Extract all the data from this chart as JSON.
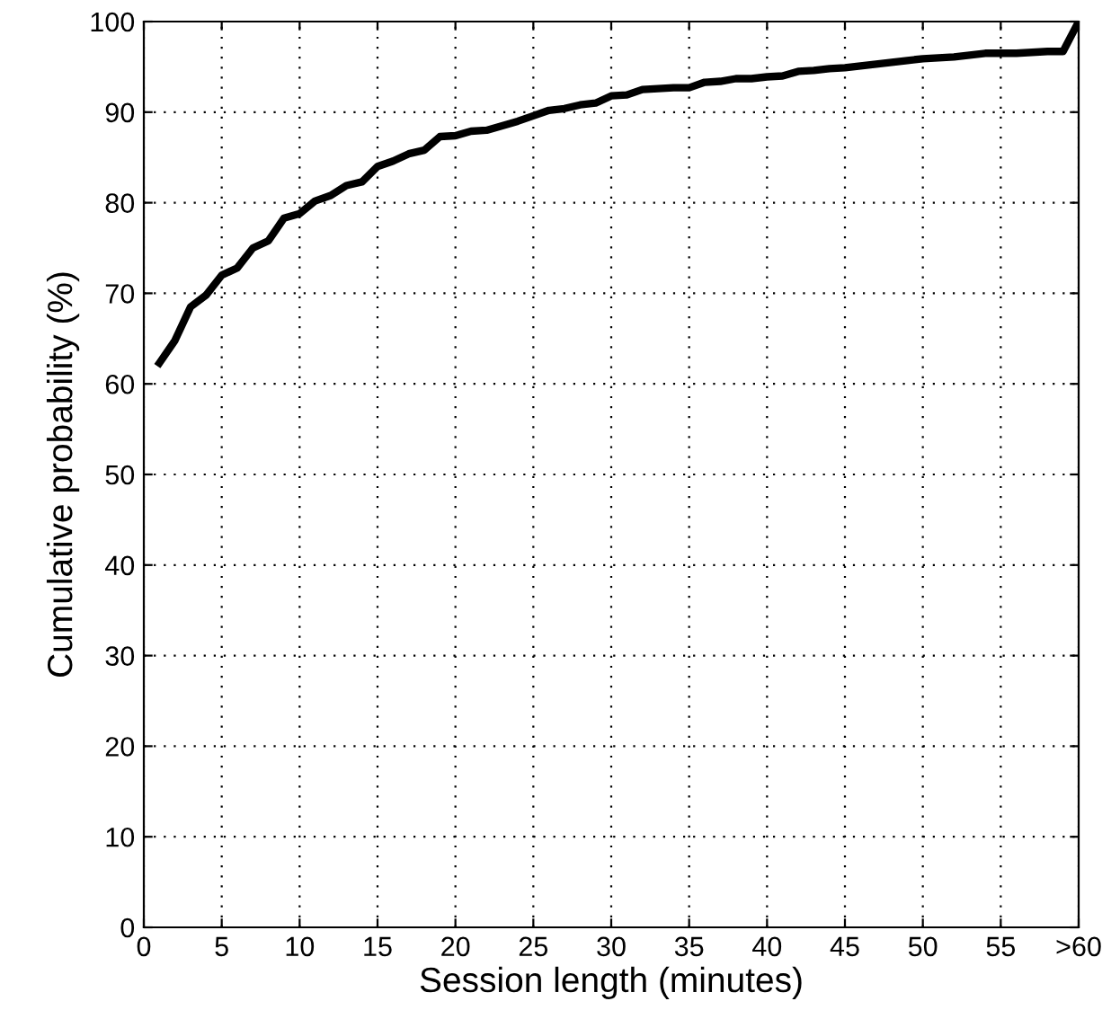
{
  "chart_data": {
    "type": "line",
    "xlabel": "Session length (minutes)",
    "ylabel": "Cumulative probability (%)",
    "x": [
      1,
      2,
      3,
      4,
      5,
      6,
      7,
      8,
      9,
      10,
      11,
      12,
      13,
      14,
      15,
      16,
      17,
      18,
      19,
      20,
      21,
      22,
      23,
      24,
      25,
      26,
      27,
      28,
      29,
      30,
      31,
      32,
      33,
      34,
      35,
      36,
      37,
      38,
      39,
      40,
      41,
      42,
      43,
      44,
      45,
      46,
      47,
      48,
      49,
      50,
      51,
      52,
      53,
      54,
      55,
      56,
      57,
      58,
      59,
      60
    ],
    "series": [
      {
        "color": "#000000",
        "values": [
          62.3,
          64.8,
          68.5,
          69.8,
          72,
          72.8,
          75,
          75.8,
          78.3,
          78.8,
          80.2,
          80.8,
          81.9,
          82.3,
          84,
          84.6,
          85.4,
          85.8,
          87.3,
          87.4,
          87.9,
          88,
          88.5,
          89,
          89.6,
          90.2,
          90.4,
          90.8,
          91,
          91.8,
          91.9,
          92.5,
          92.6,
          92.7,
          92.7,
          93.3,
          93.4,
          93.7,
          93.7,
          93.9,
          94,
          94.5,
          94.6,
          94.8,
          94.9,
          95.1,
          95.3,
          95.5,
          95.7,
          95.9,
          96,
          96.1,
          96.3,
          96.5,
          96.5,
          96.5,
          96.6,
          96.7,
          96.7,
          100
        ]
      }
    ],
    "xlim": [
      0,
      60
    ],
    "xticks": [
      0,
      5,
      10,
      15,
      20,
      25,
      30,
      35,
      40,
      45,
      50,
      55,
      {
        "value": 60,
        "label": ">60"
      }
    ],
    "ylim": [
      0,
      100
    ],
    "yticks": [
      0,
      10,
      20,
      30,
      40,
      50,
      60,
      70,
      80,
      90,
      100
    ],
    "grid": true,
    "marker": "none",
    "line_style": "solid"
  }
}
